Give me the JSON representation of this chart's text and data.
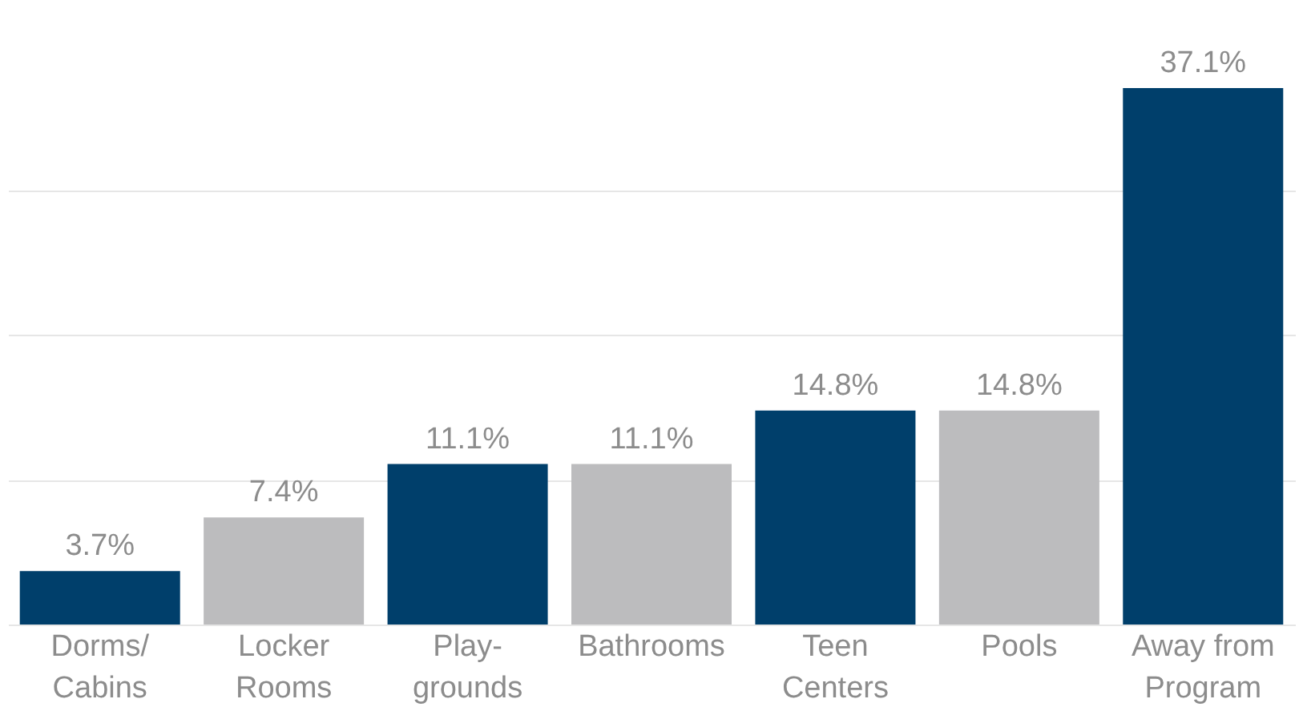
{
  "chart_data": {
    "type": "bar",
    "categories": [
      "Dorms/\nCabins",
      "Locker\nRooms",
      "Play-\ngrounds",
      "Bathrooms",
      "Teen\nCenters",
      "Pools",
      "Away from\nProgram"
    ],
    "values": [
      3.7,
      7.4,
      11.1,
      11.1,
      14.8,
      14.8,
      37.1
    ],
    "value_labels": [
      "3.7%",
      "7.4%",
      "11.1%",
      "11.1%",
      "14.8%",
      "14.8%",
      "37.1%"
    ],
    "colors": [
      "#003f6b",
      "#bcbcbe",
      "#003f6b",
      "#bcbcbe",
      "#003f6b",
      "#bcbcbe",
      "#003f6b"
    ],
    "tick_labels": "x",
    "grid": "y"
  }
}
